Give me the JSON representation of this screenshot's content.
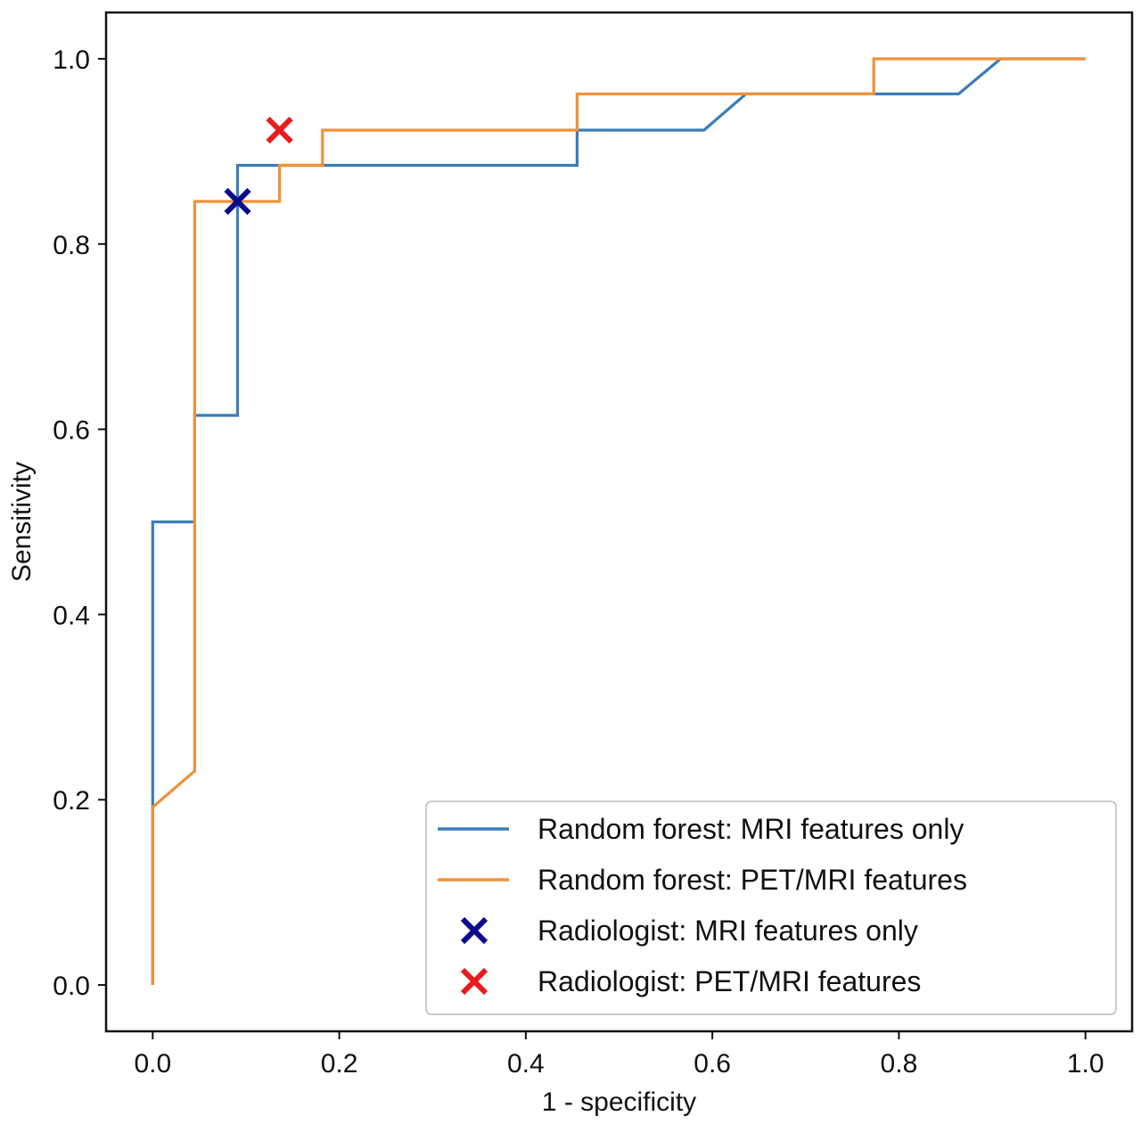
{
  "chart_data": {
    "type": "line",
    "title": "",
    "xlabel": "1 - specificity",
    "ylabel": "Sensitivity",
    "xlim": [
      -0.05,
      1.05
    ],
    "ylim": [
      -0.05,
      1.05
    ],
    "xticks": [
      "0.0",
      "0.2",
      "0.4",
      "0.6",
      "0.8",
      "1.0"
    ],
    "yticks": [
      "0.0",
      "0.2",
      "0.4",
      "0.6",
      "0.8",
      "1.0"
    ],
    "grid": false,
    "legend_position": "bottom-right",
    "series": [
      {
        "name": "Random forest: MRI features only",
        "color": "#3a7db8",
        "kind": "line",
        "x": [
          0.0,
          0.0,
          0.0,
          0.045,
          0.045,
          0.091,
          0.091,
          0.455,
          0.455,
          0.591,
          0.636,
          0.864,
          0.909,
          1.0
        ],
        "y": [
          0.0,
          0.192,
          0.5,
          0.5,
          0.615,
          0.615,
          0.885,
          0.885,
          0.923,
          0.923,
          0.962,
          0.962,
          1.0,
          1.0
        ]
      },
      {
        "name": "Random forest: PET/MRI features",
        "color": "#f0913a",
        "kind": "line",
        "x": [
          0.0,
          0.0,
          0.045,
          0.045,
          0.136,
          0.136,
          0.182,
          0.182,
          0.455,
          0.455,
          0.773,
          0.773,
          1.0
        ],
        "y": [
          0.0,
          0.192,
          0.231,
          0.846,
          0.846,
          0.885,
          0.885,
          0.923,
          0.923,
          0.962,
          0.962,
          1.0,
          1.0
        ]
      },
      {
        "name": "Radiologist: MRI features only",
        "color": "#0b0b8c",
        "kind": "marker",
        "x": [
          0.091
        ],
        "y": [
          0.846
        ]
      },
      {
        "name": "Radiologist: PET/MRI features",
        "color": "#e81c1c",
        "kind": "marker",
        "x": [
          0.136
        ],
        "y": [
          0.923
        ]
      }
    ]
  }
}
